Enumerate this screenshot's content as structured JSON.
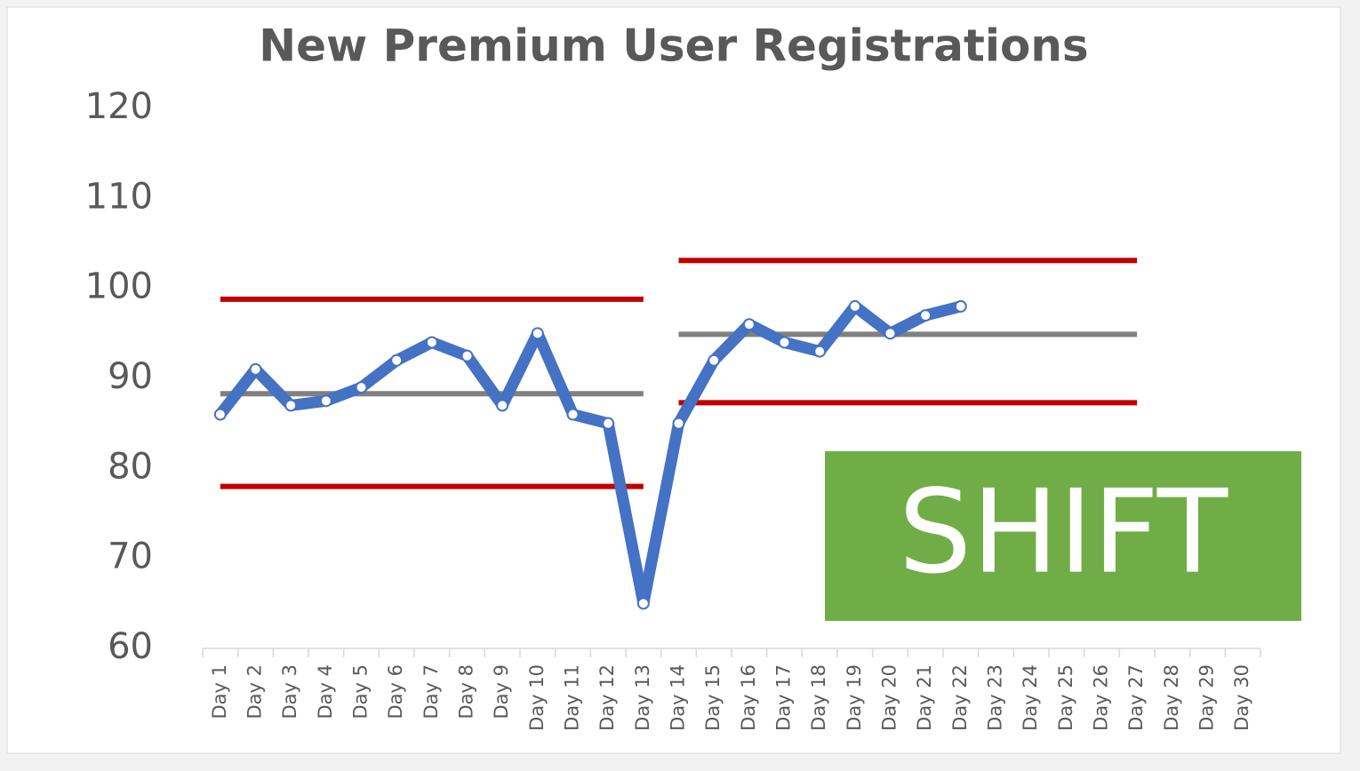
{
  "chart_data": {
    "type": "line",
    "title": "New Premium User Registrations",
    "categories": [
      "Day 1",
      "Day 2",
      "Day 3",
      "Day 4",
      "Day 5",
      "Day 6",
      "Day 7",
      "Day 8",
      "Day 9",
      "Day 10",
      "Day 11",
      "Day 12",
      "Day 13",
      "Day 14",
      "Day 15",
      "Day 16",
      "Day 17",
      "Day 18",
      "Day 19",
      "Day 20",
      "Day 21",
      "Day 22",
      "Day 23",
      "Day 24",
      "Day 25",
      "Day 26",
      "Day 27",
      "Day 28",
      "Day 29",
      "Day 30"
    ],
    "series": [
      {
        "color": "#4472c4",
        "markers": true,
        "values": [
          86,
          91,
          87,
          87.5,
          89,
          92,
          94,
          92.5,
          87,
          95,
          86,
          85,
          65,
          85,
          92,
          96,
          94,
          93,
          98,
          95,
          97,
          98,
          null,
          null,
          null,
          null,
          null,
          null,
          null,
          null
        ]
      },
      {
        "color": "#c00000",
        "values": [
          98.8,
          98.8,
          98.8,
          98.8,
          98.8,
          98.8,
          98.8,
          98.8,
          98.8,
          98.8,
          98.8,
          98.8,
          98.8,
          null,
          null,
          null,
          null,
          null,
          null,
          null,
          null,
          null,
          null,
          null,
          null,
          null,
          null,
          null,
          null,
          null
        ]
      },
      {
        "color": "#808080",
        "values": [
          88.3,
          88.3,
          88.3,
          88.3,
          88.3,
          88.3,
          88.3,
          88.3,
          88.3,
          88.3,
          88.3,
          88.3,
          88.3,
          null,
          null,
          null,
          null,
          null,
          null,
          null,
          null,
          null,
          null,
          null,
          null,
          null,
          null,
          null,
          null,
          null
        ]
      },
      {
        "color": "#c00000",
        "values": [
          78,
          78,
          78,
          78,
          78,
          78,
          78,
          78,
          78,
          78,
          78,
          78,
          78,
          null,
          null,
          null,
          null,
          null,
          null,
          null,
          null,
          null,
          null,
          null,
          null,
          null,
          null,
          null,
          null,
          null
        ]
      },
      {
        "color": "#c00000",
        "values": [
          null,
          null,
          null,
          null,
          null,
          null,
          null,
          null,
          null,
          null,
          null,
          null,
          null,
          103.1,
          103.1,
          103.1,
          103.1,
          103.1,
          103.1,
          103.1,
          103.1,
          103.1,
          103.1,
          103.1,
          103.1,
          103.1,
          103.1,
          null,
          null,
          null
        ]
      },
      {
        "color": "#808080",
        "values": [
          null,
          null,
          null,
          null,
          null,
          null,
          null,
          null,
          null,
          null,
          null,
          null,
          null,
          94.9,
          94.9,
          94.9,
          94.9,
          94.9,
          94.9,
          94.9,
          94.9,
          94.9,
          94.9,
          94.9,
          94.9,
          94.9,
          94.9,
          null,
          null,
          null
        ]
      },
      {
        "color": "#c00000",
        "values": [
          null,
          null,
          null,
          null,
          null,
          null,
          null,
          null,
          null,
          null,
          null,
          null,
          null,
          87.3,
          87.3,
          87.3,
          87.3,
          87.3,
          87.3,
          87.3,
          87.3,
          87.3,
          87.3,
          87.3,
          87.3,
          87.3,
          87.3,
          null,
          null,
          null
        ]
      }
    ],
    "annotation": "SHIFT",
    "annotation_color": "#70ad47",
    "ylim": [
      60,
      120
    ],
    "yticks": [
      60,
      70,
      80,
      90,
      100,
      110,
      120
    ],
    "grid": false
  }
}
